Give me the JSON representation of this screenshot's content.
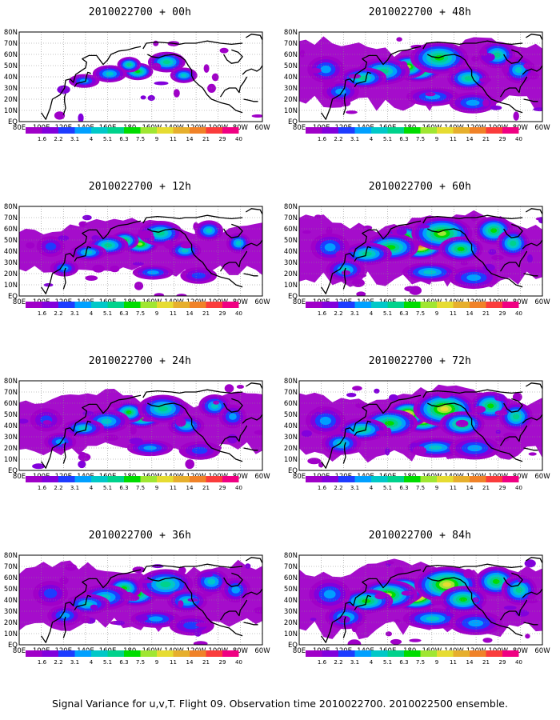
{
  "title_date": "2010022700",
  "palette": [
    "#a000c8",
    "#8200dc",
    "#1e3cff",
    "#00a0ff",
    "#00c8c8",
    "#00d28c",
    "#00dc00",
    "#a0e632",
    "#e6dc32",
    "#e6af2d",
    "#f08228",
    "#fa3c3c",
    "#f00082"
  ],
  "colorbar_labels": [
    "1.6",
    "2.2",
    "3.1",
    "4",
    "5.1",
    "6.3",
    "7.5",
    "9",
    "11",
    "14",
    "21",
    "29",
    "40"
  ],
  "lat_labels": [
    "EQ",
    "10N",
    "20N",
    "30N",
    "40N",
    "50N",
    "60N",
    "70N",
    "80N"
  ],
  "lon_labels": [
    "80E",
    "100E",
    "120E",
    "140E",
    "160E",
    "180",
    "160W",
    "140W",
    "120W",
    "100W",
    "80W",
    "60W"
  ],
  "panels": [
    {
      "title": "2010022700 + 00h",
      "intensity": 0.55,
      "spread": 0.45
    },
    {
      "title": "2010022700 + 12h",
      "intensity": 0.65,
      "spread": 0.7
    },
    {
      "title": "2010022700 + 24h",
      "intensity": 0.6,
      "spread": 0.9
    },
    {
      "title": "2010022700 + 36h",
      "intensity": 0.6,
      "spread": 1.05
    },
    {
      "title": "2010022700 + 48h",
      "intensity": 0.75,
      "spread": 1.15
    },
    {
      "title": "2010022700 + 60h",
      "intensity": 0.85,
      "spread": 1.25
    },
    {
      "title": "2010022700 + 72h",
      "intensity": 0.9,
      "spread": 1.3
    },
    {
      "title": "2010022700 + 84h",
      "intensity": 0.95,
      "spread": 1.4
    }
  ],
  "footer": "Signal Variance for u,v,T. Flight 09. Observation time 2010022700. 2010022500 ensemble."
}
